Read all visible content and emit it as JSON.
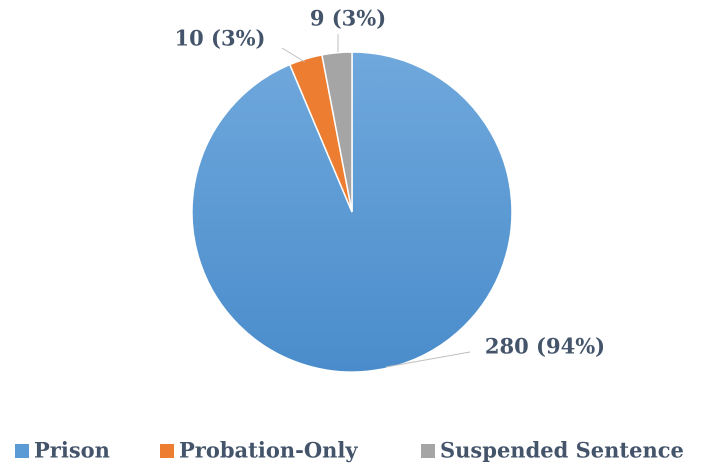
{
  "chart_data": {
    "type": "pie",
    "categories": [
      "Prison",
      "Probation-Only",
      "Suspended Sentence"
    ],
    "values": [
      280,
      10,
      9
    ],
    "value_labels": [
      "280 (94%)",
      "10 (3%)",
      "9 (3%)"
    ],
    "colors": [
      "#5b9bd5",
      "#ed7d31",
      "#a5a5a5"
    ],
    "legend": "bottom"
  }
}
